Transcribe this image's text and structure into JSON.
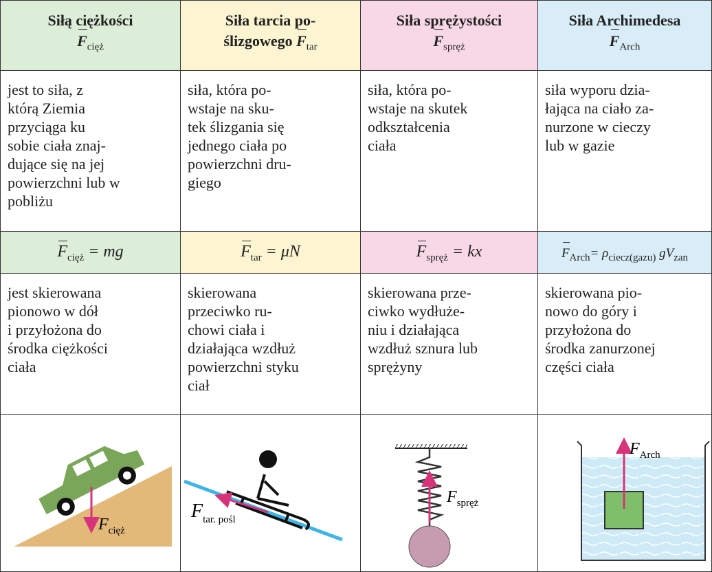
{
  "table": {
    "headers": [
      {
        "title": [
          "Siłą ciężkości"
        ],
        "symbol": {
          "base": "F",
          "sub": "cięż"
        }
      },
      {
        "title": [
          "Siła tarcia po-",
          "ślizgowego"
        ],
        "symbol": {
          "base": "F",
          "sub": "tar"
        }
      },
      {
        "title": [
          "Siła sprężystości"
        ],
        "symbol": {
          "base": "F",
          "sub": "spręż"
        }
      },
      {
        "title": [
          "Siła Archimedesa"
        ],
        "symbol": {
          "base": "F",
          "sub": "Arch"
        }
      }
    ],
    "definitions": [
      [
        "jest to siła, z",
        "którą Ziemia",
        "przyciąga ku",
        "sobie ciała znaj-",
        "dujące się na jej",
        "powierzchni lub w",
        "pobliżu"
      ],
      [
        "siła, która po-",
        "wstaje na sku-",
        "tek ślizgania się",
        "jednego ciała po",
        "powierzchni dru-",
        "giego"
      ],
      [
        "siła, która po-",
        "wstaje na skutek",
        "odkształcenia",
        "ciała"
      ],
      [
        "siła wyporu dzia-",
        "łająca na ciało za-",
        "nurzone w cieczy",
        "lub w gazie"
      ]
    ],
    "formulas": [
      [
        {
          "text": "F",
          "sub": "cięż"
        },
        {
          "text": " = mg"
        }
      ],
      [
        {
          "text": "F",
          "sub": "tar"
        },
        {
          "text": " = μN"
        }
      ],
      [
        {
          "text": "F",
          "sub": "spręż"
        },
        {
          "text": " = kx"
        }
      ],
      [
        {
          "text": "F",
          "sub": "Arch"
        },
        {
          "text": "= ρ",
          "sub": "ciecz(gazu)"
        },
        {
          "text": " gV",
          "sub": "zan"
        }
      ]
    ],
    "directions": [
      [
        "jest skierowana",
        "pionowo w dół",
        "i przyłożona do",
        "środka ciężkości",
        "ciała"
      ],
      [
        "skierowana",
        "przeciwko ru-",
        "chowi ciała i",
        "działająca wzdłuż",
        "powierzchni styku",
        "ciał"
      ],
      [
        "skierowana prze-",
        "ciwko wydłuże-",
        "niu i działająca",
        "wzdłuż sznura lub",
        "sprężyny"
      ],
      [
        "skierowana pio-",
        "nowo do góry i",
        "przyłożona do",
        "środka zanurzonej",
        "części ciała"
      ]
    ],
    "illustrations": [
      {
        "base": "F",
        "sub": "cięż"
      },
      {
        "base": "F",
        "sub": "tar. pośl"
      },
      {
        "base": "F",
        "sub": "spręż"
      },
      {
        "base": "F",
        "sub": "Arch"
      }
    ]
  }
}
